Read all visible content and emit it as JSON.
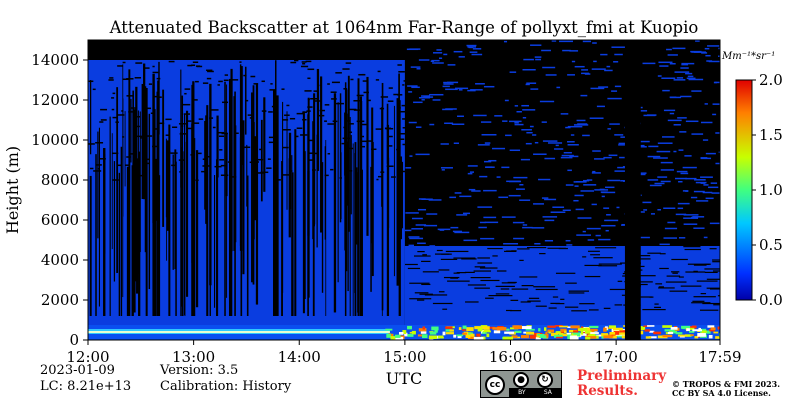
{
  "chart_data": {
    "type": "heatmap",
    "title": "Attenuated Backscatter at 1064nm Far-Range of pollyxt_fmi at Kuopio",
    "ylabel": "Height (m)",
    "xlabel": "UTC",
    "x_ticks": [
      "12:00",
      "13:00",
      "14:00",
      "15:00",
      "16:00",
      "17:00",
      "17:59"
    ],
    "y_ticks": [
      "0",
      "2000",
      "4000",
      "6000",
      "8000",
      "10000",
      "12000",
      "14000"
    ],
    "xlim": [
      "12:00",
      "17:59"
    ],
    "ylim": [
      0,
      15000
    ],
    "colorbar": {
      "unit": "Mm⁻¹*sr⁻¹",
      "ticks": [
        "0.0",
        "0.5",
        "1.0",
        "1.5",
        "2.0"
      ],
      "range": [
        0,
        2.0
      ],
      "colormap": "jet"
    },
    "data_gap": {
      "start": "17:05",
      "end": "17:14"
    },
    "cloud_free_signal_top": "15:00",
    "boundary_layer_top_m": 450
  },
  "meta": {
    "date": "2023-01-09",
    "lc": "LC: 8.21e+13",
    "version": "Version: 3.5",
    "calibration": "Calibration: History"
  },
  "footer": {
    "preliminary_line1": "Preliminary",
    "preliminary_line2": "Results.",
    "copyright_line1": "© TROPOS & FMI 2023.",
    "copyright_line2": "CC BY SA 4.0 License.",
    "license_badge": {
      "cc": "cc",
      "by": "BY",
      "sa": "SA"
    }
  },
  "colors": {
    "background": "#000000",
    "low": "#0a3de0",
    "text_red": "#ee3333"
  }
}
